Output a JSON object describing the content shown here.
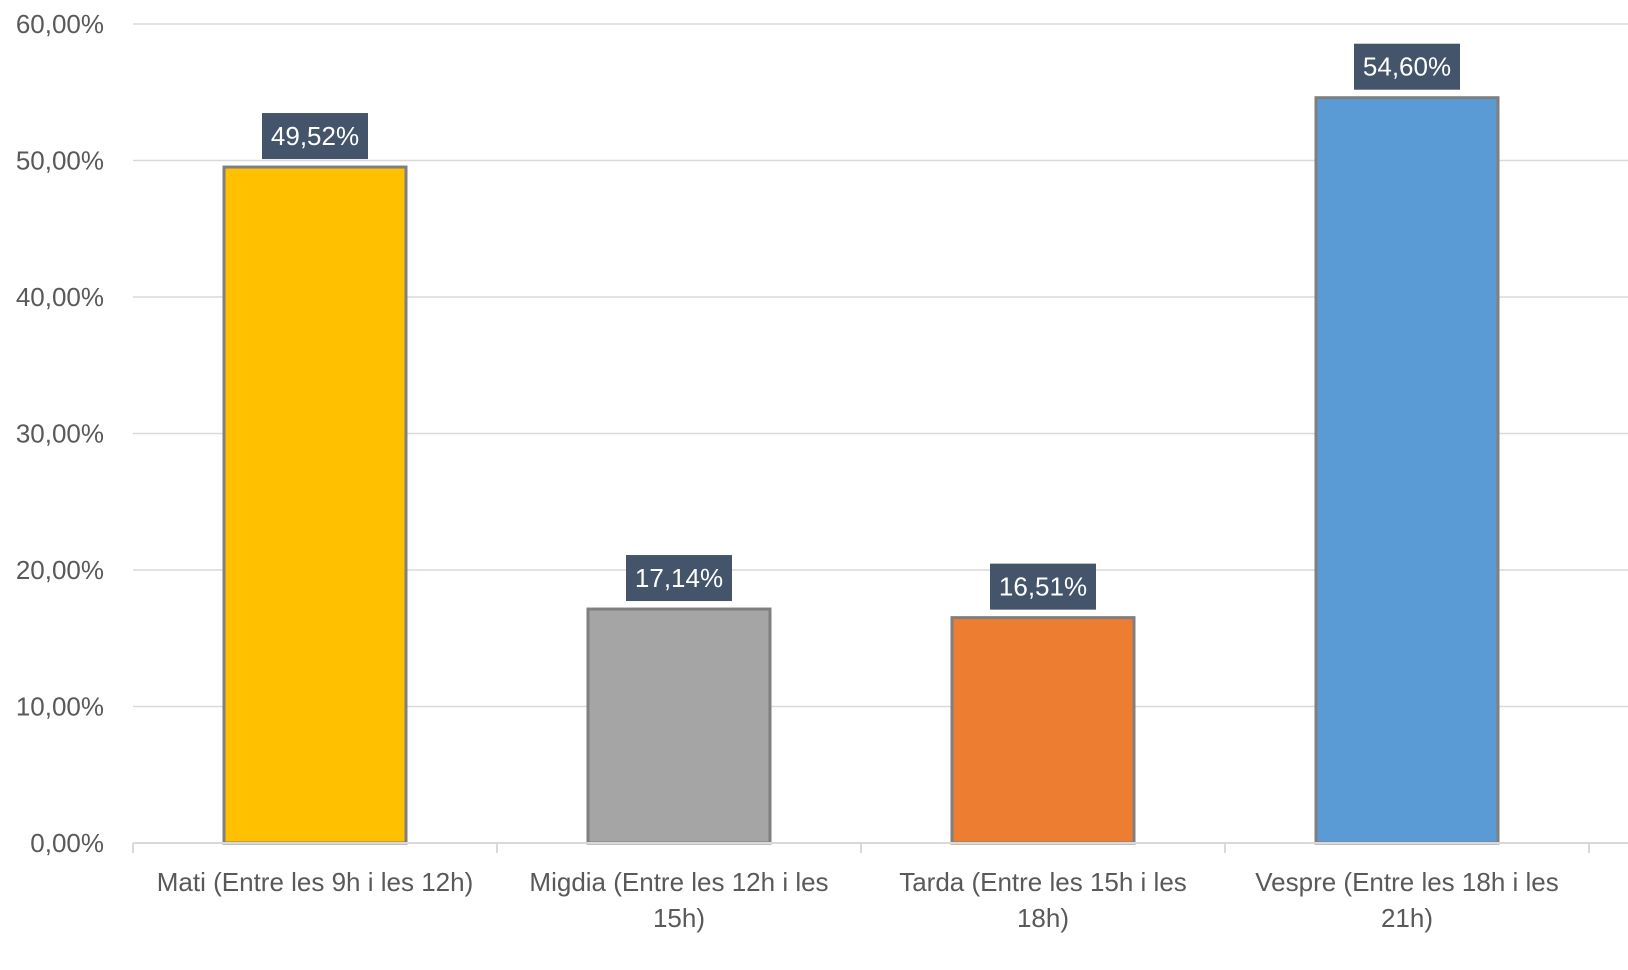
{
  "chart_data": {
    "type": "bar",
    "categories": [
      [
        "Mati (Entre les 9h i les 12h)"
      ],
      [
        "Migdia (Entre les 12h i les",
        "15h)"
      ],
      [
        "Tarda (Entre les 15h i les",
        "18h)"
      ],
      [
        "Vespre (Entre les 18h i les",
        "21h)"
      ]
    ],
    "values": [
      49.52,
      17.14,
      16.51,
      54.6
    ],
    "data_labels": [
      "49,52%",
      "17,14%",
      "16,51%",
      "54,60%"
    ],
    "bar_colors": [
      "#FFC000",
      "#A5A5A5",
      "#ED7D31",
      "#5B9BD5"
    ],
    "bar_border_color": "#7F7F7F",
    "data_label_background": "#44546A",
    "y_ticks": [
      {
        "value": 0,
        "label": "0,00%"
      },
      {
        "value": 10,
        "label": "10,00%"
      },
      {
        "value": 20,
        "label": "20,00%"
      },
      {
        "value": 30,
        "label": "30,00%"
      },
      {
        "value": 40,
        "label": "40,00%"
      },
      {
        "value": 50,
        "label": "50,00%"
      },
      {
        "value": 60,
        "label": "60,00%"
      }
    ],
    "ylim": [
      0,
      60
    ],
    "grid": true,
    "legend": "none",
    "title": "",
    "xlabel": "",
    "ylabel": ""
  }
}
